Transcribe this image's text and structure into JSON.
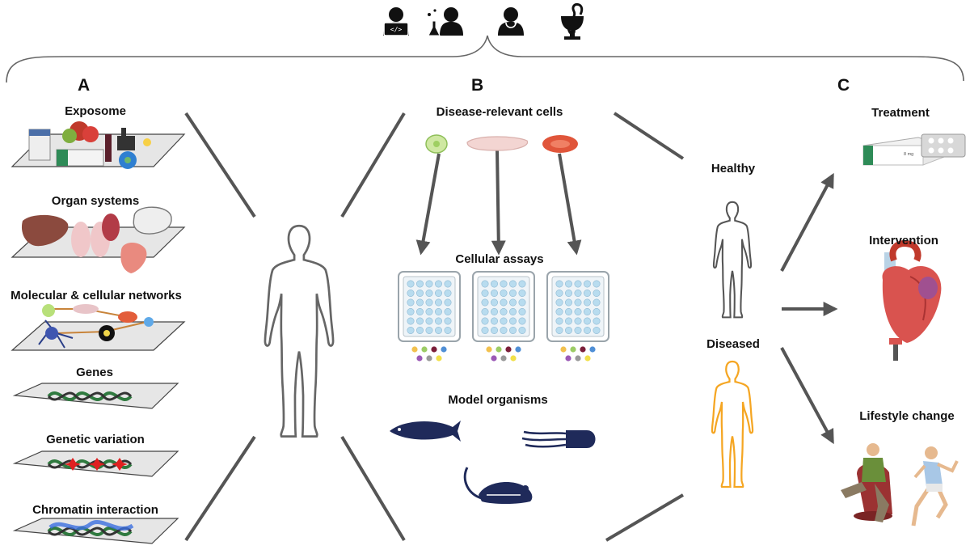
{
  "sections": {
    "a": "A",
    "b": "B",
    "c": "C"
  },
  "left_panel": {
    "layers": [
      "Exposome",
      "Organ systems",
      "Molecular & cellular networks",
      "Genes",
      "Genetic variation",
      "Chromatin interaction"
    ]
  },
  "middle_panel": {
    "cells_title": "Disease-relevant cells",
    "assays_title": "Cellular assays",
    "organisms_title": "Model organisms"
  },
  "outcomes": {
    "healthy": "Healthy",
    "diseased": "Diseased"
  },
  "right_panel": {
    "treatment": "Treatment",
    "intervention": "Intervention",
    "lifestyle": "Lifestyle change"
  },
  "medicine_box_text": "8 mg",
  "colors": {
    "arrow": "#555555",
    "body_outline": "#555555",
    "diseased_outline": "#f5a623",
    "dark_icon": "#1f2a5a",
    "bead_colors": [
      "#f2c14e",
      "#9ccc65",
      "#7b1f3a",
      "#4f8fd6",
      "#9b59b6",
      "#999999",
      "#f1e04a"
    ]
  },
  "icons": [
    "programmer-icon",
    "scientist-icon",
    "doctor-icon",
    "pharmacy-icon",
    "zebrafish-icon",
    "worm-icon",
    "mouse-icon"
  ]
}
